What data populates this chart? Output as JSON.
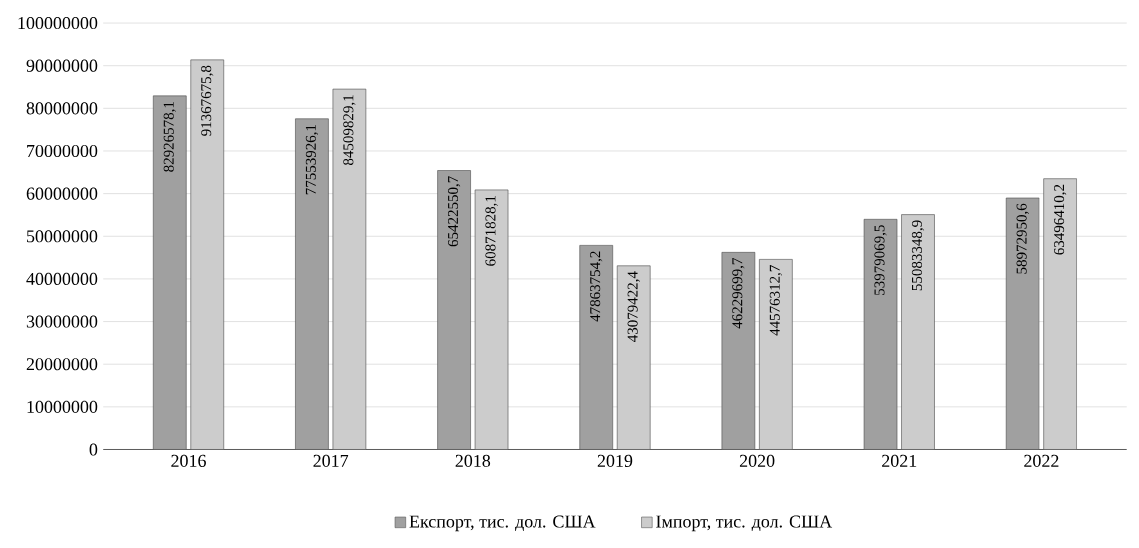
{
  "chart_data": {
    "type": "bar",
    "categories": [
      "2016",
      "2017",
      "2018",
      "2019",
      "2020",
      "2021",
      "2022"
    ],
    "series": [
      {
        "name": "Експорт, тис. дол. США",
        "color": "#a0a0a0",
        "values": [
          82926578.1,
          77553926.1,
          65422550.7,
          47863754.2,
          46229699.7,
          53979069.5,
          58972950.6
        ],
        "value_labels": [
          "82926578,1",
          "77553926,1",
          "65422550,7",
          "47863754,2",
          "46229699,7",
          "53979069,5",
          "58972950,6"
        ]
      },
      {
        "name": "Імпорт, тис. дол. США",
        "color": "#cccccc",
        "values": [
          91367675.8,
          84509829.1,
          60871828.1,
          43079422.4,
          44576312.7,
          55083348.9,
          63496410.2
        ],
        "value_labels": [
          "91367675,8",
          "84509829,1",
          "60871828,1",
          "43079422,4",
          "44576312,7",
          "55083348,9",
          "63496410,2"
        ]
      }
    ],
    "ylim": [
      0,
      100000000
    ],
    "yticks": [
      0,
      10000000,
      20000000,
      30000000,
      40000000,
      50000000,
      60000000,
      70000000,
      80000000,
      90000000,
      100000000
    ],
    "grid": "y",
    "legend": "bottom"
  }
}
